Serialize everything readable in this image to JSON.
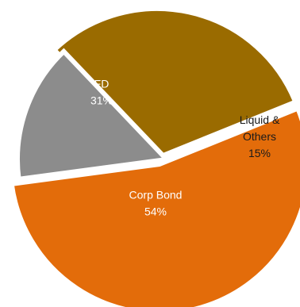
{
  "chart_data": {
    "type": "pie",
    "title": "",
    "slices": [
      {
        "label_lines": [
          "FD"
        ],
        "percent_text": "31%",
        "value": 31,
        "color": "#9A6B00",
        "label_color": "#ffffff"
      },
      {
        "label_lines": [
          "Liquid &",
          "Others"
        ],
        "percent_text": "15%",
        "value": 15,
        "color": "#8C8C8C",
        "label_color": "#1a1a1a"
      },
      {
        "label_lines": [
          "Corp Bond"
        ],
        "percent_text": "54%",
        "value": 54,
        "color": "#E36C0A",
        "label_color": "#ffffff"
      }
    ],
    "legend": "none",
    "data_labels": "inside"
  }
}
